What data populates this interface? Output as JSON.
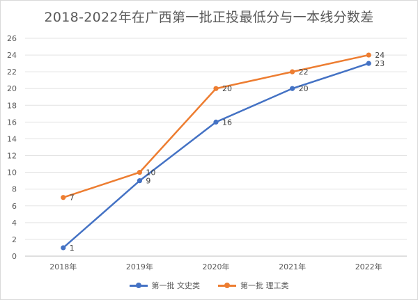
{
  "chart_data": {
    "type": "line",
    "title": "2018-2022年在广西第一批正投最低分与一本线分数差",
    "categories": [
      "2018年",
      "2019年",
      "2020年",
      "2021年",
      "2022年"
    ],
    "ylim": [
      0,
      26
    ],
    "yticks": [
      0,
      2,
      4,
      6,
      8,
      10,
      12,
      14,
      16,
      18,
      20,
      22,
      24,
      26
    ],
    "grid": true,
    "legend_position": "bottom",
    "series": [
      {
        "name": "第一批 文史类",
        "values": [
          1,
          9,
          16,
          20,
          23
        ],
        "color": "#4472C4"
      },
      {
        "name": "第一批 理工类",
        "values": [
          7,
          10,
          20,
          22,
          24
        ],
        "color": "#ED7D31"
      }
    ]
  }
}
